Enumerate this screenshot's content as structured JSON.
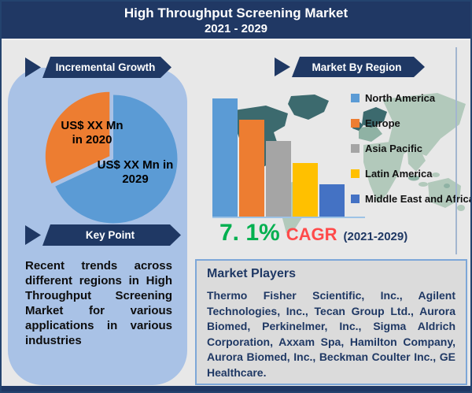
{
  "header": {
    "title_line1": "High Throughput Screening Market",
    "title_line2": "2021 - 2029"
  },
  "left_panel": {
    "growth_banner_label": "Incremental Growth",
    "pie_label_2020_line1": "US$ XX Mn",
    "pie_label_2020_line2": "in 2020",
    "pie_label_2029_line1": "US$ XX Mn in",
    "pie_label_2029_line2": "2029",
    "key_point_banner_label": "Key Point",
    "key_point_text": "Recent trends across different regions in High Throughput Screening Market for various applications in various industries"
  },
  "right_panel": {
    "region_banner_label": "Market By Region",
    "cagr": {
      "value": "7. 1%",
      "label": "CAGR",
      "period": "(2021-2029)"
    },
    "market_players": {
      "title": "Market Players",
      "companies_text": "Thermo Fisher Scientific, Inc., Agilent Technologies, Inc., Tecan Group Ltd., Aurora Biomed, Perkinelmer, Inc., Sigma Aldrich Corporation, Axxam Spa, Hamilton Company, Aurora Biomed, Inc., Beckman Coulter Inc., GE Healthcare."
    }
  },
  "colors": {
    "header_navy": "#203864",
    "banner_navy": "#1f3864",
    "left_panel_blue": "#a9c2e6",
    "cagr_green": "#00b050",
    "cagr_red": "#ff4a4a",
    "axis_light_blue": "#9dc3e6",
    "map_pale_green": "#b2c9bb",
    "map_dark_teal": "#3c6a6e"
  },
  "chart_data": [
    {
      "type": "pie",
      "title": "Incremental Growth",
      "labels": [
        "US$ XX Mn in 2020",
        "US$ XX Mn in 2029"
      ],
      "values": [
        32,
        68
      ],
      "colors": [
        "#ED7D31",
        "#5B9BD5"
      ],
      "note": "Monetary values shown as XX placeholders; slice sizes estimated from pixels, 2020 slice exploded up-left"
    },
    {
      "type": "bar",
      "title": "Market By Region",
      "categories": [
        "North America",
        "Europe",
        "Asia Pacific",
        "Latin America",
        "Middle East and Africa"
      ],
      "values": [
        100,
        82,
        64,
        45,
        27
      ],
      "colors": [
        "#5B9BD5",
        "#ED7D31",
        "#A5A5A5",
        "#FFC000",
        "#4472C4"
      ],
      "xlabel": "",
      "ylabel": "",
      "note": "No numeric axis shown; values are relative bar heights (max=100). World map backdrop, legend at right."
    }
  ]
}
